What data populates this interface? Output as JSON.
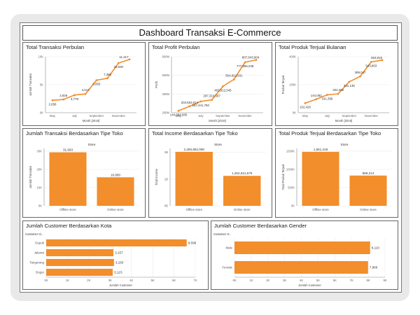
{
  "dashboard_title": "Dashboard Transaksi E-Commerce",
  "colors": {
    "accent": "#f28e2b",
    "grid": "#ececec",
    "text": "#333333",
    "axis": "#888888"
  },
  "charts": [
    {
      "id": "c1",
      "type": "line",
      "title": "Total Transaksi Perbulan",
      "xlabel": "Month [2018]",
      "ylabel": "Jumlah Transaksi",
      "x_ticks": [
        "May",
        "July",
        "September",
        "November"
      ],
      "y_ticks": [
        "0K",
        "5K",
        "10K"
      ],
      "ylim": [
        0,
        12000
      ],
      "points": [
        {
          "label": "2,658",
          "value": 2658
        },
        {
          "label": "2,835",
          "value": 2835
        },
        {
          "label": "3,778",
          "value": 3778
        },
        {
          "label": "4,017",
          "value": 4017
        },
        {
          "label": "6,953",
          "value": 6953
        },
        {
          "label": "7,385",
          "value": 7385
        },
        {
          "label": "10,630",
          "value": 10630
        },
        {
          "label": "11,417",
          "value": 11417
        }
      ]
    },
    {
      "id": "c2",
      "type": "line",
      "title": "Total Profit Perbulan",
      "xlabel": "Month [2018]",
      "ylabel": "Profit",
      "x_ticks": [
        "May",
        "July",
        "September",
        "November"
      ],
      "y_ticks": [
        "200M",
        "400M",
        "600M",
        "800M"
      ],
      "ylim": [
        120000000,
        850000000
      ],
      "points": [
        {
          "label": "144,684,586",
          "value": 144684586
        },
        {
          "label": "203,663,014",
          "value": 203663014
        },
        {
          "label": "267,441,750",
          "value": 267441750
        },
        {
          "label": "287,310,587",
          "value": 287310587
        },
        {
          "label": "463,912,545",
          "value": 463912545
        },
        {
          "label": "554,822,931",
          "value": 554822931
        },
        {
          "label": "777,896,048",
          "value": 777896048
        },
        {
          "label": "807,643,904",
          "value": 807643904
        }
      ]
    },
    {
      "id": "c3",
      "type": "line",
      "title": "Total Produk Terjual Bulanan",
      "xlabel": "Month [2018]",
      "ylabel": "Produk Terjual",
      "x_ticks": [
        "May",
        "July",
        "September",
        "November"
      ],
      "y_ticks": [
        "0K",
        "200K",
        "400K"
      ],
      "ylim": [
        0,
        600000
      ],
      "points": [
        {
          "label": "102,426",
          "value": 102426
        },
        {
          "label": "144,082",
          "value": 144082
        },
        {
          "label": "191,396",
          "value": 191396
        },
        {
          "label": "202,465",
          "value": 202465
        },
        {
          "label": "331,135",
          "value": 331135
        },
        {
          "label": "389,047",
          "value": 389047
        },
        {
          "label": "543,863",
          "value": 543863
        },
        {
          "label": "563,819",
          "value": 563819
        }
      ]
    },
    {
      "id": "c4",
      "type": "bar",
      "title": "Jumlah Transaksi Berdasarkan Tipe Toko",
      "header": "Store",
      "ylabel": "Jumlah Transaksi",
      "y_ticks": [
        "0K",
        "10K",
        "20K",
        "30K"
      ],
      "ylim": [
        0,
        34000
      ],
      "categories": [
        "Offline store",
        "Online store"
      ],
      "values": [
        31693,
        16880
      ],
      "labels": [
        "31,693",
        "16,880"
      ]
    },
    {
      "id": "c5",
      "type": "bar",
      "title": "Total Income Berdasarkan Tipe Toko",
      "header": "Store",
      "ylabel": "Total Income",
      "y_ticks": [
        "0B",
        "1B",
        "2B"
      ],
      "ylim": [
        0,
        2400000000
      ],
      "categories": [
        "Offline store",
        "Online store"
      ],
      "values": [
        2255852090,
        1252521675
      ],
      "labels": [
        "2,255,852,090",
        "1,252,521,675"
      ]
    },
    {
      "id": "c6",
      "type": "bar",
      "title": "Total Produk Terjual Berdasarkan Tipe Toko",
      "header": "Store",
      "ylabel": "Total Produk Terjual",
      "y_ticks": [
        "0K",
        "500K",
        "1000K",
        "1500K"
      ],
      "ylim": [
        0,
        1650000
      ],
      "categories": [
        "Offline store",
        "Online store"
      ],
      "values": [
        1551418,
        869214
      ],
      "labels": [
        "1,551,418",
        "869,214"
      ]
    },
    {
      "id": "c7",
      "type": "hbar",
      "title": "Jumlah Customer Berdasarkan Kota",
      "header": "Customer Ci..",
      "xlabel": "Jumlah Customer",
      "x_ticks": [
        "0K",
        "1K",
        "2K",
        "3K",
        "4K",
        "5K",
        "6K",
        "7K"
      ],
      "xlim": [
        0,
        7000
      ],
      "categories": [
        "Depok",
        "Jakarta",
        "Tangerang",
        "Bogor"
      ],
      "values": [
        6596,
        3157,
        3183,
        3123
      ],
      "labels": [
        "6,596",
        "3,157",
        "3,183",
        "3,123"
      ]
    },
    {
      "id": "c8",
      "type": "hbar",
      "title": "Jumlah Customer Berdasarkan Gender",
      "header": "Customer G..",
      "xlabel": "Jumlah Customer",
      "x_ticks": [
        "0K",
        "1K",
        "2K",
        "3K",
        "4K",
        "5K",
        "6K",
        "7K",
        "8K",
        "9K"
      ],
      "xlim": [
        0,
        9000
      ],
      "categories": [
        "Male",
        "Female"
      ],
      "values": [
        8110,
        7986
      ],
      "labels": [
        "8,110",
        "7,986"
      ]
    }
  ]
}
